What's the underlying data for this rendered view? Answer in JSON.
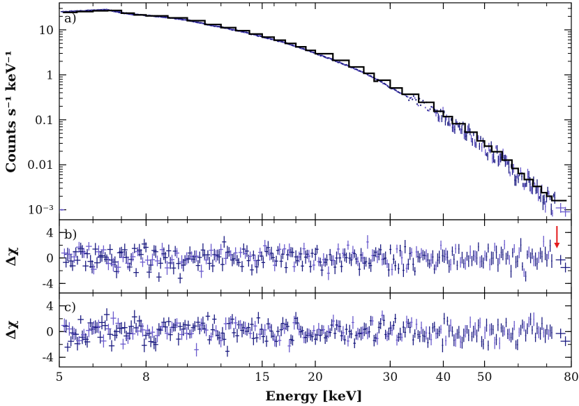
{
  "chart_data": [
    {
      "panel": "a)",
      "type": "line",
      "title": "",
      "xlabel": "",
      "ylabel": "Counts s⁻¹ keV⁻¹",
      "xscale": "log",
      "yscale": "log",
      "xlim": [
        5,
        80
      ],
      "ylim": [
        0.0006,
        40
      ],
      "yticks": [
        0.001,
        0.01,
        0.1,
        1,
        10
      ],
      "ytick_labels": [
        "10⁻³",
        "0.01",
        "0.1",
        "1",
        "10"
      ],
      "series": [
        {
          "kind": "data-crosses",
          "color": "#6a5acd",
          "x": [
            5.1,
            5.5,
            6.0,
            6.5,
            7.0,
            7.5,
            8.0,
            9.0,
            10.0,
            11.0,
            12.0,
            13.0,
            14.0,
            15.0,
            16.0,
            17.0,
            18.0,
            19.0,
            20.0,
            22.0,
            24.0,
            26.0,
            28.0,
            30.0,
            32.0,
            35.0,
            38.0,
            40.0,
            42.0,
            45.0,
            48.0,
            50.0,
            52.0,
            55.0,
            58.0,
            60.0,
            62.0,
            65.0,
            68.0,
            70.0,
            72.0,
            75.0
          ],
          "y": [
            25.0,
            26.0,
            27.0,
            28.0,
            24.0,
            22.0,
            21.0,
            19.0,
            16.5,
            13.5,
            11.5,
            9.8,
            8.3,
            7.0,
            6.0,
            5.1,
            4.3,
            3.6,
            3.0,
            2.15,
            1.55,
            1.12,
            0.78,
            0.52,
            0.38,
            0.25,
            0.16,
            0.12,
            0.085,
            0.055,
            0.035,
            0.027,
            0.02,
            0.013,
            0.0085,
            0.0065,
            0.0048,
            0.0033,
            0.0023,
            0.0018,
            0.0014,
            0.001
          ]
        },
        {
          "kind": "model-step",
          "color": "#000000",
          "x": [
            5.1,
            5.5,
            6.0,
            6.5,
            7.0,
            7.5,
            8.0,
            9.0,
            10.0,
            11.0,
            12.0,
            13.0,
            14.0,
            15.0,
            16.0,
            17.0,
            18.0,
            19.0,
            20.0,
            22.0,
            24.0,
            26.0,
            27.5,
            28.0,
            30.0,
            32.0,
            35.0,
            38.0,
            40.0,
            42.0,
            45.0,
            48.0,
            50.0,
            52.0,
            55.0,
            58.0,
            60.0,
            62.0,
            65.0,
            68.0,
            70.0,
            72.0,
            75.0,
            78.0
          ],
          "y": [
            24.5,
            25.5,
            26.5,
            27.0,
            23.5,
            21.5,
            20.5,
            18.5,
            16.0,
            13.2,
            11.2,
            9.6,
            8.1,
            6.9,
            5.9,
            5.0,
            4.2,
            3.5,
            2.95,
            2.1,
            1.5,
            1.08,
            0.72,
            0.76,
            0.51,
            0.37,
            0.245,
            0.155,
            0.118,
            0.082,
            0.053,
            0.034,
            0.026,
            0.0195,
            0.0127,
            0.0083,
            0.0064,
            0.0047,
            0.0033,
            0.0024,
            0.002,
            0.0016,
            0.0016,
            0.0016
          ]
        }
      ]
    },
    {
      "panel": "b)",
      "type": "scatter",
      "title": "",
      "xlabel": "",
      "ylabel": "Δχ",
      "xscale": "log",
      "xlim": [
        5,
        80
      ],
      "ylim": [
        -5.5,
        6
      ],
      "yticks": [
        -4,
        0,
        4
      ],
      "ytick_labels": [
        "-4",
        "0",
        "4"
      ],
      "annotation": "red arrow near 74 keV",
      "residual_pattern_seed": 11
    },
    {
      "panel": "c)",
      "type": "scatter",
      "title": "",
      "xlabel": "Energy [keV]",
      "ylabel": "Δχ",
      "xscale": "log",
      "xlim": [
        5,
        80
      ],
      "ylim": [
        -5.5,
        6
      ],
      "yticks": [
        -4,
        0,
        4
      ],
      "ytick_labels": [
        "-4",
        "0",
        "4"
      ],
      "xticks": [
        5,
        8,
        15,
        20,
        30,
        40,
        50,
        80
      ],
      "xtick_labels": [
        "5",
        "8",
        "15",
        "20",
        "30",
        "40",
        "50",
        "80"
      ],
      "residual_pattern_seed": 29
    }
  ],
  "colors": {
    "data_light": "#6a5acd",
    "data_dark": "#1a1a80",
    "model": "#000000",
    "marker": "#e41a1c"
  }
}
